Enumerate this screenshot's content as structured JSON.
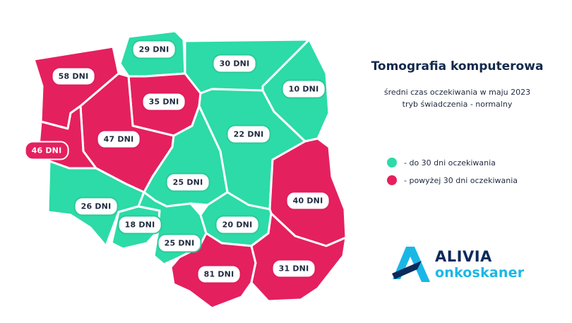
{
  "title": "Tomografia komputerowa",
  "subtitle_line1": "średni czas oczekiwania w maju 2023",
  "subtitle_line2": "tryb świadczenia - normalny",
  "colors": {
    "low": "#2cdba7",
    "high": "#e5205f"
  },
  "legend": [
    {
      "label": "- do 30 dni oczekiwania",
      "color": "#2cdba7"
    },
    {
      "label": "- powyżej 30 dni oczekiwania",
      "color": "#e5205f"
    }
  ],
  "regions": [
    {
      "label": "58 DNI",
      "days": 58,
      "category": "high"
    },
    {
      "label": "29 DNI",
      "days": 29,
      "category": "low"
    },
    {
      "label": "30 DNI",
      "days": 30,
      "category": "low"
    },
    {
      "label": "10 DNI",
      "days": 10,
      "category": "low"
    },
    {
      "label": "35 DNI",
      "days": 35,
      "category": "high"
    },
    {
      "label": "22 DNI",
      "days": 22,
      "category": "low"
    },
    {
      "label": "47 DNI",
      "days": 47,
      "category": "high"
    },
    {
      "label": "46 DNI",
      "days": 46,
      "category": "high"
    },
    {
      "label": "25 DNI",
      "days": 25,
      "category": "low"
    },
    {
      "label": "40 DNI",
      "days": 40,
      "category": "high"
    },
    {
      "label": "26 DNI",
      "days": 26,
      "category": "low"
    },
    {
      "label": "18 DNI",
      "days": 18,
      "category": "low"
    },
    {
      "label": "25 DNI",
      "days": 25,
      "category": "low"
    },
    {
      "label": "20 DNI",
      "days": 20,
      "category": "low"
    },
    {
      "label": "81 DNI",
      "days": 81,
      "category": "high"
    },
    {
      "label": "31 DNI",
      "days": 31,
      "category": "high"
    }
  ],
  "logo": {
    "name": "ALIVIA",
    "sub": "onkoskaner",
    "icon": "alivia-logo-icon"
  }
}
